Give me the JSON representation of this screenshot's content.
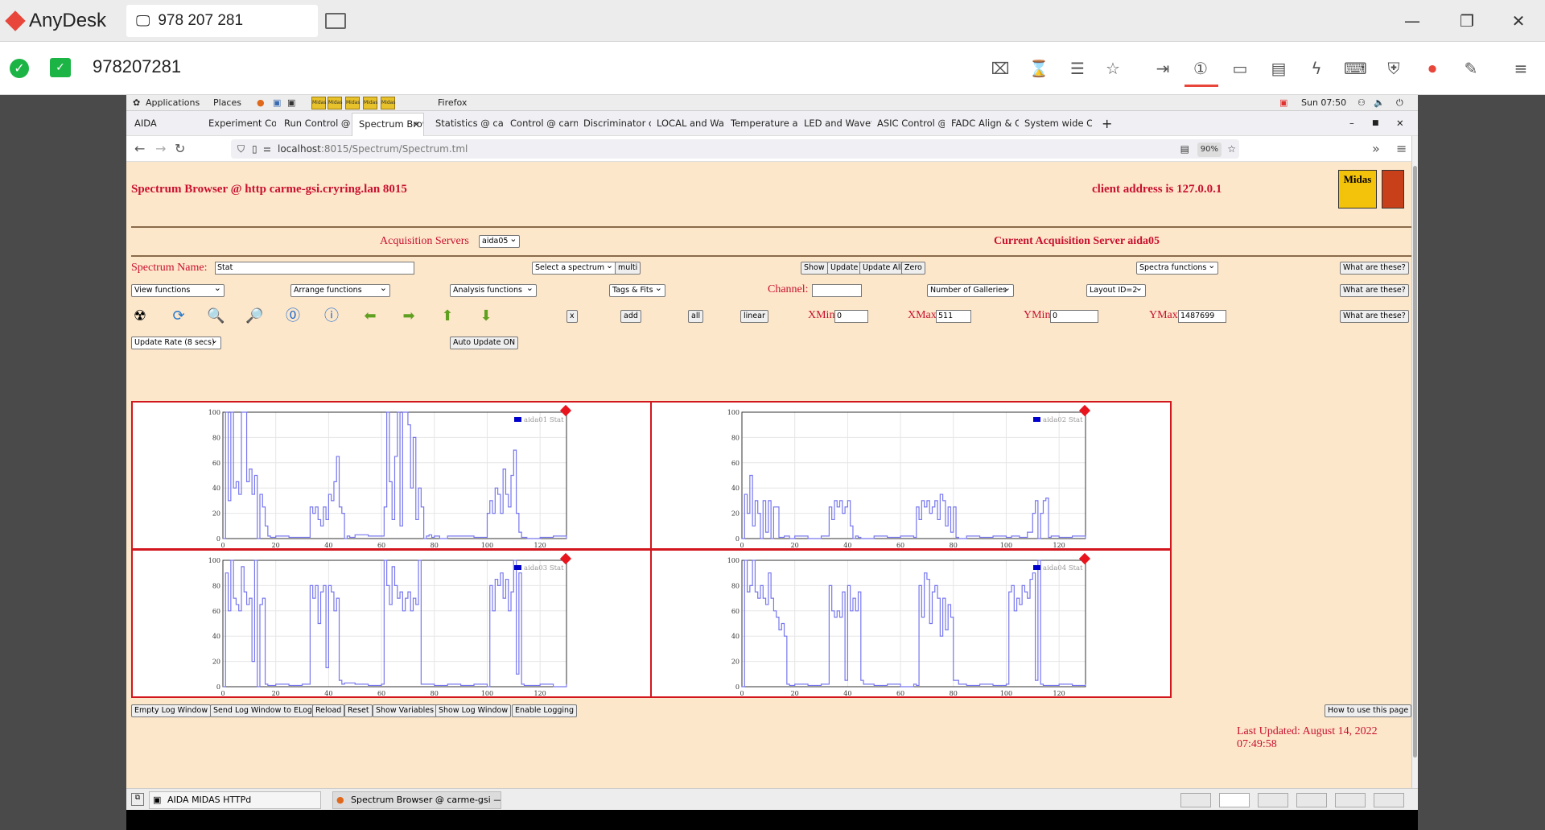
{
  "anydesk": {
    "app_name": "AnyDesk",
    "tab_label": "978 207 281",
    "address": "978207281",
    "colors": {
      "brand": "#e8463a",
      "ok": "#1db446"
    }
  },
  "gnome": {
    "applications": "Applications",
    "places": "Places",
    "firefox": "Firefox",
    "clock": "Sun 07:50",
    "launchers": [
      "Midas",
      "Midas",
      "Midas",
      "Midas",
      "Midas"
    ]
  },
  "browser": {
    "tabs": [
      {
        "label": "AIDA"
      },
      {
        "label": "Experiment Contr"
      },
      {
        "label": "Run Control @ ca"
      },
      {
        "label": "Spectrum Brow"
      },
      {
        "label": "Statistics @ carm"
      },
      {
        "label": "Control @ carme"
      },
      {
        "label": "Discriminator con"
      },
      {
        "label": "LOCAL and Wave"
      },
      {
        "label": "Temperature and"
      },
      {
        "label": "LED and Wavefor"
      },
      {
        "label": "ASIC Control @ c"
      },
      {
        "label": "FADC Align & Co"
      },
      {
        "label": "System wide Che"
      }
    ],
    "url_host": "localhost",
    "url_path": ":8015/Spectrum/Spectrum.tml",
    "zoom": "90%"
  },
  "page": {
    "title": "Spectrum Browser @ http carme-gsi.cryring.lan 8015",
    "client_address": "client address is 127.0.0.1",
    "midas_logo": "Midas",
    "acq_servers_label": "Acquisition Servers",
    "acq_server_select": "aida05",
    "current_acq_server": "Current Acquisition Server aida05",
    "spectrum_name_label": "Spectrum Name:",
    "spectrum_name_value": "Stat",
    "select_spectrum": "Select a spectrum",
    "multi": "multi",
    "show": "Show",
    "update": "Update",
    "update_all": "Update All",
    "zero": "Zero",
    "spectra_functions": "Spectra functions",
    "what_are_these": "What are these?",
    "view_functions": "View functions",
    "arrange_functions": "Arrange functions",
    "analysis_functions": "Analysis functions",
    "tags_fits": "Tags & Fits",
    "channel_label": "Channel:",
    "channel_value": "",
    "number_of_galleries": "Number of Galleries",
    "layout": "Layout ID=2",
    "x_btn": "x",
    "add_btn": "add",
    "all_btn": "all",
    "linear_btn": "linear",
    "xmin_label": "XMin",
    "xmin_value": "0",
    "xmax_label": "XMax",
    "xmax_value": "511",
    "ymin_label": "YMin",
    "ymin_value": "0",
    "ymax_label": "YMax",
    "ymax_value": "1487699",
    "update_rate": "Update Rate (8 secs)",
    "auto_update": "Auto Update ON",
    "footer_buttons": [
      "Empty Log Window",
      "Send Log Window to ELog",
      "Reload",
      "Reset",
      "Show Variables",
      "Show Log Window",
      "Enable Logging"
    ],
    "how_to_use": "How to use this page",
    "last_updated": "Last Updated: August 14, 2022 07:49:58"
  },
  "taskbar": {
    "items": [
      "AIDA MIDAS HTTPd",
      "Spectrum Browser @ carme-gsi — ..."
    ]
  },
  "chart_data": [
    {
      "type": "line",
      "series": [
        {
          "name": "aida01 Stat",
          "color": "#0000cc"
        }
      ],
      "x": [
        0,
        1,
        2,
        3,
        4,
        5,
        6,
        7,
        8,
        9,
        10,
        11,
        12,
        13,
        14,
        15,
        16,
        17,
        18,
        20,
        25,
        30,
        33,
        34,
        35,
        36,
        37,
        38,
        39,
        40,
        41,
        42,
        43,
        44,
        45,
        46,
        47,
        48,
        50,
        55,
        60,
        61,
        62,
        63,
        64,
        65,
        66,
        67,
        68,
        69,
        70,
        71,
        72,
        73,
        74,
        75,
        76,
        77,
        78,
        79,
        80,
        82,
        85,
        90,
        95,
        100,
        101,
        102,
        103,
        104,
        105,
        106,
        107,
        108,
        109,
        110,
        111,
        112,
        113,
        115,
        120,
        125,
        130
      ],
      "y": [
        0,
        100,
        30,
        100,
        40,
        45,
        35,
        100,
        100,
        45,
        55,
        35,
        50,
        0,
        35,
        25,
        10,
        2,
        1,
        2,
        1,
        1,
        25,
        20,
        25,
        15,
        10,
        25,
        15,
        35,
        30,
        45,
        65,
        25,
        20,
        0,
        2,
        1,
        3,
        2,
        2,
        25,
        100,
        45,
        15,
        65,
        100,
        10,
        100,
        100,
        90,
        40,
        80,
        15,
        40,
        25,
        0,
        2,
        3,
        1,
        2,
        0,
        2,
        2,
        1,
        20,
        30,
        20,
        40,
        35,
        20,
        55,
        35,
        25,
        50,
        70,
        20,
        5,
        1,
        0,
        1,
        2,
        0
      ],
      "xlim": [
        0,
        130
      ],
      "ylim": [
        0,
        100
      ],
      "xticks": [
        0,
        20,
        40,
        60,
        80,
        100,
        120
      ],
      "yticks": [
        0,
        20,
        40,
        60,
        80,
        100
      ],
      "grid": true,
      "legend": "top-right"
    },
    {
      "type": "line",
      "series": [
        {
          "name": "aida02 Stat",
          "color": "#0000cc"
        }
      ],
      "x": [
        0,
        1,
        2,
        3,
        4,
        5,
        6,
        7,
        8,
        9,
        10,
        11,
        12,
        14,
        16,
        18,
        20,
        25,
        30,
        33,
        34,
        35,
        36,
        37,
        38,
        39,
        40,
        41,
        42,
        43,
        44,
        45,
        50,
        55,
        60,
        65,
        66,
        67,
        68,
        69,
        70,
        71,
        72,
        73,
        74,
        75,
        76,
        77,
        78,
        79,
        80,
        81,
        82,
        85,
        90,
        95,
        100,
        102,
        105,
        108,
        110,
        111,
        112,
        113,
        114,
        115,
        116,
        117,
        120,
        125,
        130
      ],
      "y": [
        0,
        35,
        20,
        50,
        10,
        30,
        20,
        0,
        30,
        5,
        30,
        0,
        25,
        1,
        2,
        0,
        2,
        0,
        2,
        25,
        15,
        30,
        25,
        30,
        20,
        25,
        30,
        10,
        0,
        2,
        1,
        0,
        2,
        1,
        2,
        1,
        25,
        15,
        30,
        25,
        30,
        20,
        25,
        30,
        15,
        35,
        30,
        10,
        25,
        5,
        25,
        1,
        0,
        2,
        1,
        2,
        1,
        2,
        1,
        5,
        20,
        30,
        0,
        20,
        30,
        32,
        1,
        2,
        1,
        2,
        0
      ],
      "xlim": [
        0,
        130
      ],
      "ylim": [
        0,
        100
      ],
      "xticks": [
        0,
        20,
        40,
        60,
        80,
        100,
        120
      ],
      "yticks": [
        0,
        20,
        40,
        60,
        80,
        100
      ],
      "grid": true,
      "legend": "top-right"
    },
    {
      "type": "line",
      "series": [
        {
          "name": "aida03 Stat",
          "color": "#0000cc"
        }
      ],
      "x": [
        0,
        1,
        2,
        3,
        4,
        5,
        6,
        7,
        8,
        9,
        10,
        11,
        12,
        13,
        14,
        15,
        16,
        17,
        20,
        25,
        30,
        33,
        34,
        35,
        36,
        37,
        38,
        39,
        40,
        41,
        42,
        43,
        44,
        45,
        46,
        50,
        55,
        60,
        61,
        62,
        63,
        64,
        65,
        66,
        67,
        68,
        69,
        70,
        71,
        72,
        73,
        74,
        75,
        80,
        85,
        90,
        95,
        100,
        101,
        102,
        103,
        104,
        105,
        106,
        107,
        108,
        109,
        110,
        111,
        112,
        113,
        114,
        120,
        125,
        130
      ],
      "y": [
        0,
        90,
        60,
        100,
        70,
        65,
        60,
        95,
        75,
        65,
        70,
        20,
        100,
        0,
        65,
        70,
        2,
        1,
        2,
        1,
        2,
        80,
        70,
        80,
        50,
        75,
        80,
        15,
        80,
        75,
        60,
        70,
        5,
        2,
        3,
        2,
        1,
        2,
        100,
        80,
        65,
        95,
        80,
        70,
        75,
        60,
        70,
        75,
        60,
        70,
        65,
        100,
        2,
        1,
        2,
        1,
        2,
        0,
        80,
        60,
        85,
        80,
        90,
        70,
        85,
        60,
        75,
        100,
        10,
        90,
        2,
        1,
        2,
        0,
        2
      ],
      "xlim": [
        0,
        130
      ],
      "ylim": [
        0,
        100
      ],
      "xticks": [
        0,
        20,
        40,
        60,
        80,
        100,
        120
      ],
      "yticks": [
        0,
        20,
        40,
        60,
        80,
        100
      ],
      "grid": true,
      "legend": "top-right"
    },
    {
      "type": "line",
      "series": [
        {
          "name": "aida04 Stat",
          "color": "#0000cc"
        }
      ],
      "x": [
        0,
        1,
        2,
        3,
        4,
        5,
        6,
        7,
        8,
        9,
        10,
        11,
        12,
        13,
        14,
        15,
        16,
        17,
        18,
        20,
        25,
        30,
        33,
        34,
        35,
        36,
        37,
        38,
        39,
        40,
        41,
        42,
        43,
        44,
        45,
        46,
        50,
        55,
        60,
        65,
        66,
        67,
        68,
        69,
        70,
        71,
        72,
        73,
        74,
        75,
        76,
        77,
        78,
        79,
        80,
        82,
        85,
        90,
        95,
        100,
        101,
        102,
        103,
        104,
        105,
        106,
        107,
        108,
        109,
        110,
        111,
        112,
        113,
        114,
        120,
        125,
        130
      ],
      "y": [
        0,
        100,
        75,
        80,
        100,
        75,
        70,
        80,
        70,
        65,
        90,
        70,
        60,
        55,
        45,
        50,
        40,
        2,
        1,
        2,
        1,
        2,
        80,
        60,
        55,
        60,
        55,
        75,
        5,
        80,
        60,
        70,
        60,
        75,
        5,
        2,
        1,
        2,
        0,
        2,
        1,
        80,
        55,
        90,
        85,
        50,
        75,
        80,
        70,
        40,
        70,
        45,
        65,
        55,
        5,
        2,
        1,
        2,
        1,
        2,
        75,
        80,
        60,
        70,
        65,
        80,
        75,
        70,
        85,
        90,
        5,
        100,
        2,
        1,
        2,
        1,
        2
      ],
      "xlim": [
        0,
        130
      ],
      "ylim": [
        0,
        100
      ],
      "xticks": [
        0,
        20,
        40,
        60,
        80,
        100,
        120
      ],
      "yticks": [
        0,
        20,
        40,
        60,
        80,
        100
      ],
      "grid": true,
      "legend": "top-right"
    }
  ]
}
